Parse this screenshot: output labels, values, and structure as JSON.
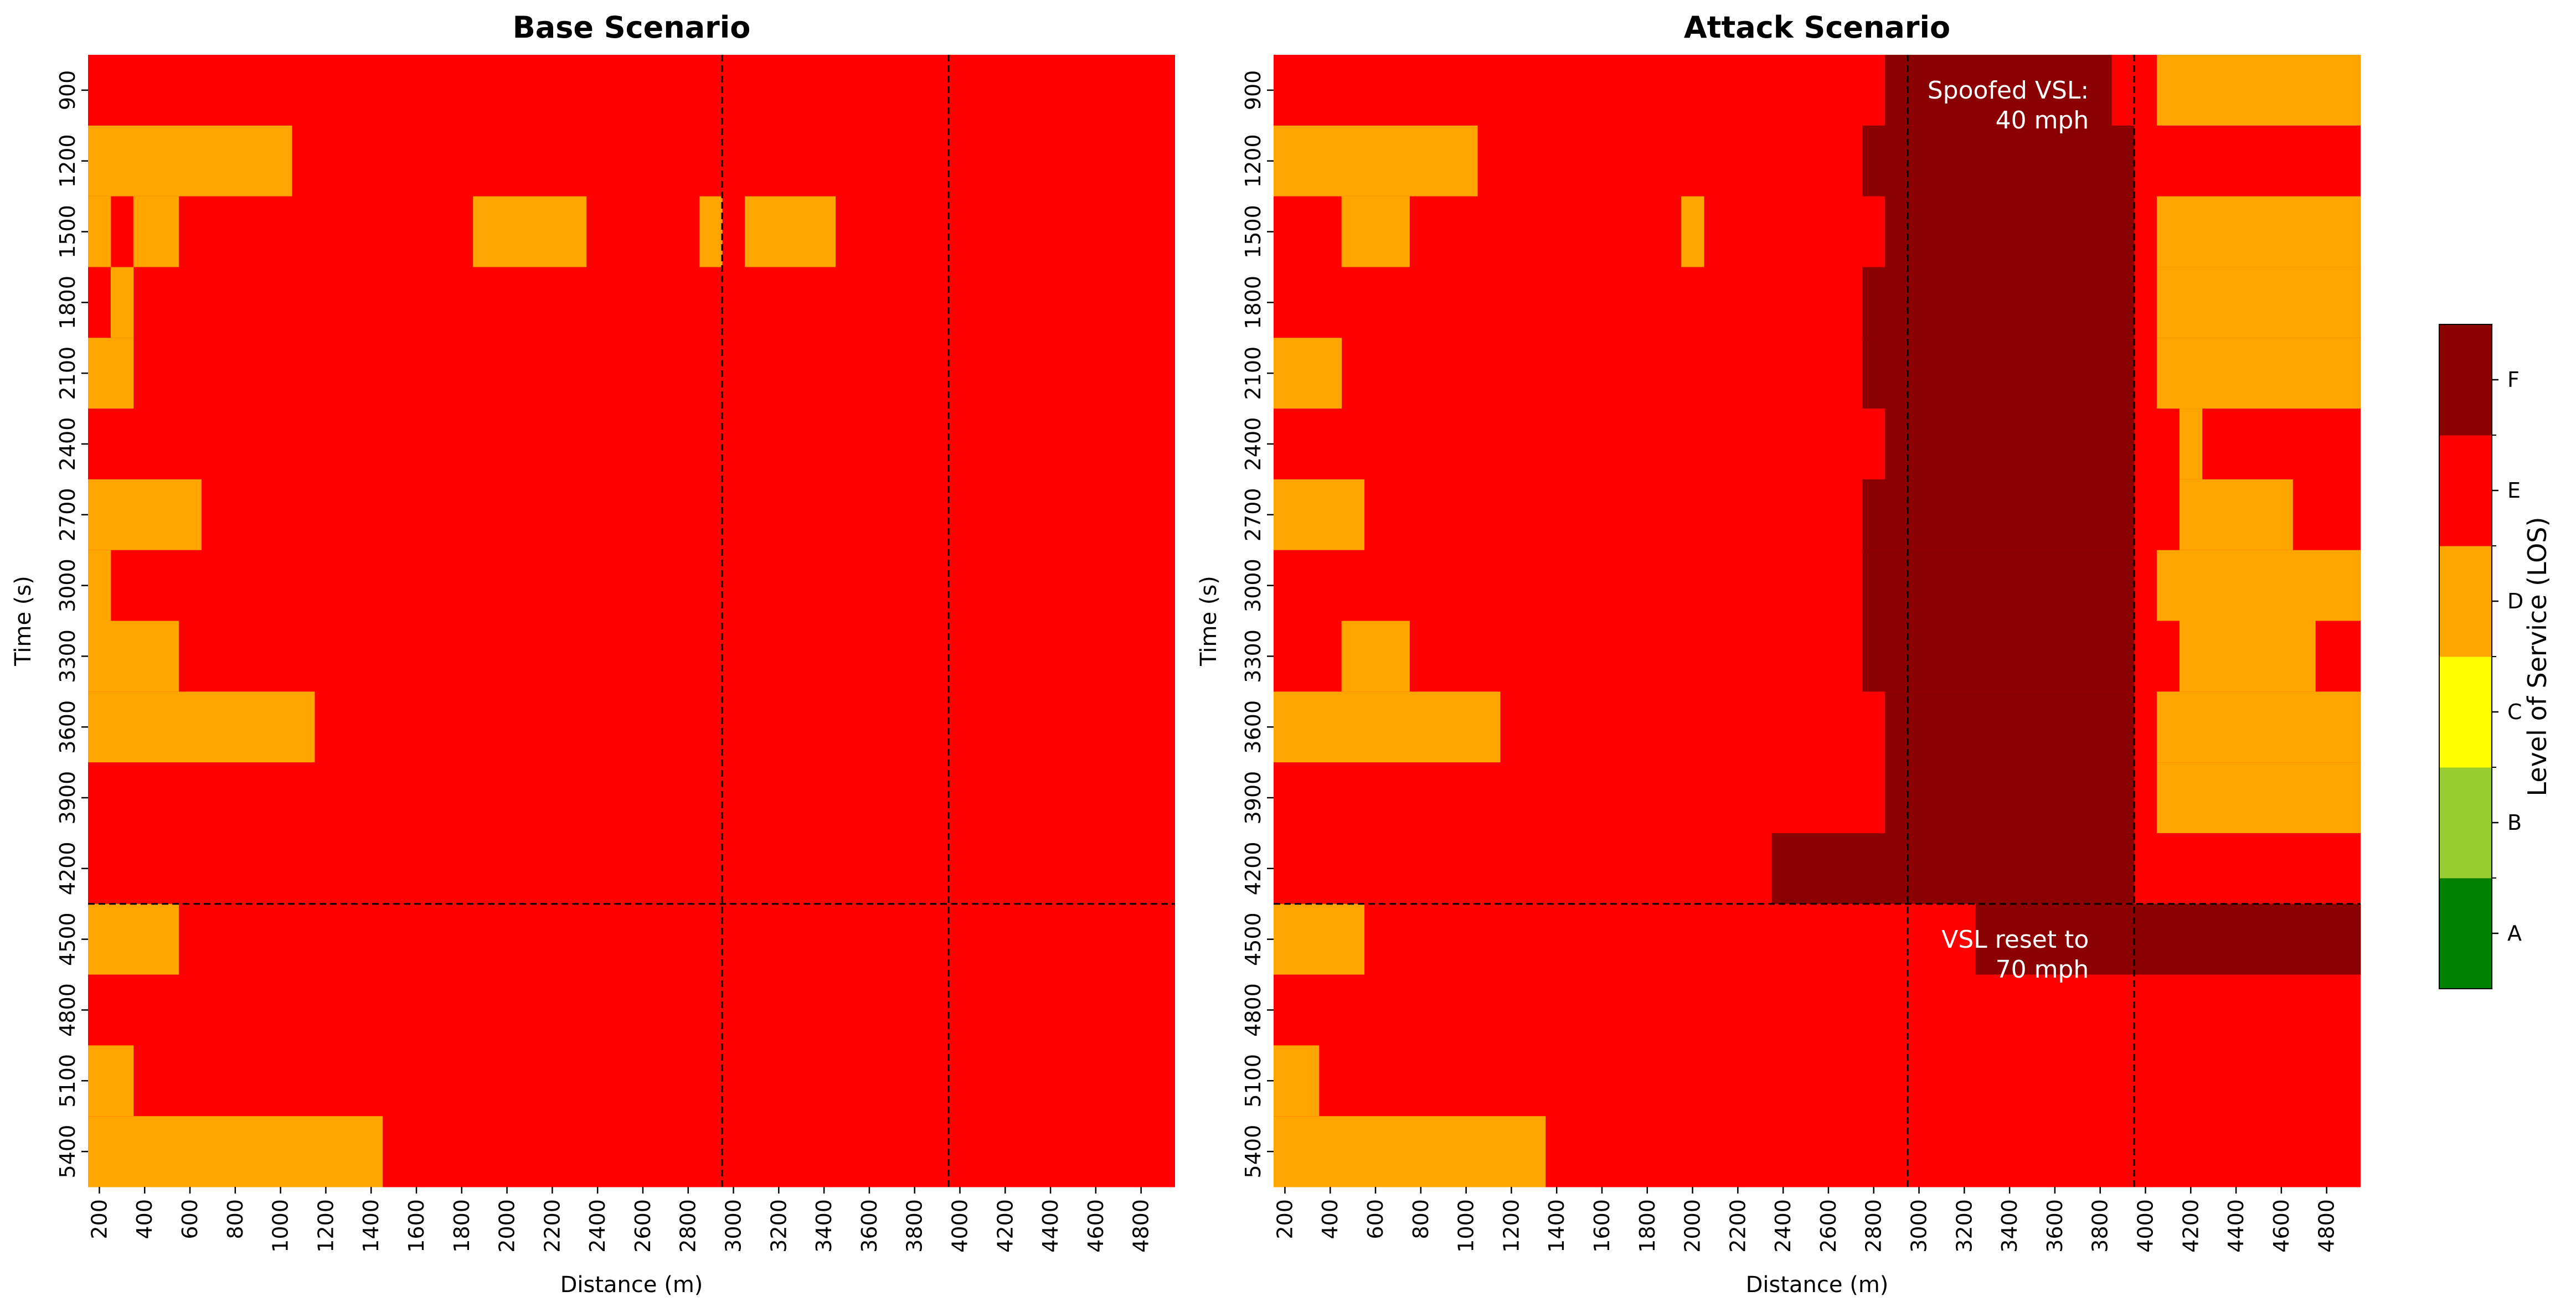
{
  "chart_data": {
    "type": "heatmap",
    "panels": [
      {
        "title": "Base Scenario",
        "xlabel": "Distance (m)",
        "ylabel": "Time (s)",
        "x_start": 200,
        "x_step": 100,
        "x_count": 48,
        "y_ticks": [
          "900",
          "1200",
          "1500",
          "1800",
          "2100",
          "2400",
          "2700",
          "3000",
          "3300",
          "3600",
          "3900",
          "4200",
          "4500",
          "4800",
          "5100",
          "5400"
        ],
        "x_ticks": [
          "200",
          "400",
          "600",
          "800",
          "1000",
          "1200",
          "1400",
          "1600",
          "1800",
          "2000",
          "2200",
          "2400",
          "2600",
          "2800",
          "3000",
          "3200",
          "3400",
          "3600",
          "3800",
          "4000",
          "4200",
          "4400",
          "4600",
          "4800"
        ],
        "default_level": "E",
        "rows": [
          [],
          [
            {
              "from": 200,
              "to": 1100,
              "level": "D"
            }
          ],
          [
            {
              "from": 200,
              "to": 300,
              "level": "D"
            },
            {
              "from": 400,
              "to": 600,
              "level": "D"
            },
            {
              "from": 1900,
              "to": 2400,
              "level": "D"
            },
            {
              "from": 2900,
              "to": 3000,
              "level": "D"
            },
            {
              "from": 3100,
              "to": 3500,
              "level": "D"
            }
          ],
          [
            {
              "from": 300,
              "to": 400,
              "level": "D"
            }
          ],
          [
            {
              "from": 200,
              "to": 400,
              "level": "D"
            }
          ],
          [],
          [
            {
              "from": 200,
              "to": 700,
              "level": "D"
            }
          ],
          [
            {
              "from": 200,
              "to": 300,
              "level": "D"
            }
          ],
          [
            {
              "from": 200,
              "to": 600,
              "level": "D"
            }
          ],
          [
            {
              "from": 200,
              "to": 1200,
              "level": "D"
            }
          ],
          [],
          [],
          [
            {
              "from": 200,
              "to": 600,
              "level": "D"
            }
          ],
          [],
          [
            {
              "from": 200,
              "to": 400,
              "level": "D"
            }
          ],
          [
            {
              "from": 200,
              "to": 1500,
              "level": "D"
            }
          ]
        ],
        "vlines": [
          3000,
          4000
        ],
        "hline_after_tick": "4200"
      },
      {
        "title": "Attack Scenario",
        "xlabel": "Distance (m)",
        "ylabel": "Time (s)",
        "x_start": 200,
        "x_step": 100,
        "x_count": 48,
        "y_ticks": [
          "900",
          "1200",
          "1500",
          "1800",
          "2100",
          "2400",
          "2700",
          "3000",
          "3300",
          "3600",
          "3900",
          "4200",
          "4500",
          "4800",
          "5100",
          "5400"
        ],
        "x_ticks": [
          "200",
          "400",
          "600",
          "800",
          "1000",
          "1200",
          "1400",
          "1600",
          "1800",
          "2000",
          "2200",
          "2400",
          "2600",
          "2800",
          "3000",
          "3200",
          "3400",
          "3600",
          "3800",
          "4000",
          "4200",
          "4400",
          "4600",
          "4800"
        ],
        "default_level": "E",
        "rows": [
          [
            {
              "from": 2900,
              "to": 3900,
              "level": "F"
            },
            {
              "from": 4100,
              "to": 5000,
              "level": "D"
            }
          ],
          [
            {
              "from": 200,
              "to": 1100,
              "level": "D"
            },
            {
              "from": 2800,
              "to": 4000,
              "level": "F"
            }
          ],
          [
            {
              "from": 500,
              "to": 800,
              "level": "D"
            },
            {
              "from": 2000,
              "to": 2100,
              "level": "D"
            },
            {
              "from": 2900,
              "to": 4000,
              "level": "F"
            },
            {
              "from": 4100,
              "to": 5000,
              "level": "D"
            }
          ],
          [
            {
              "from": 2800,
              "to": 4000,
              "level": "F"
            },
            {
              "from": 4100,
              "to": 5000,
              "level": "D"
            }
          ],
          [
            {
              "from": 200,
              "to": 500,
              "level": "D"
            },
            {
              "from": 2800,
              "to": 4000,
              "level": "F"
            },
            {
              "from": 4100,
              "to": 5000,
              "level": "D"
            }
          ],
          [
            {
              "from": 2900,
              "to": 4000,
              "level": "F"
            },
            {
              "from": 4200,
              "to": 4300,
              "level": "D"
            }
          ],
          [
            {
              "from": 200,
              "to": 600,
              "level": "D"
            },
            {
              "from": 2800,
              "to": 4000,
              "level": "F"
            },
            {
              "from": 4200,
              "to": 4700,
              "level": "D"
            }
          ],
          [
            {
              "from": 2800,
              "to": 4000,
              "level": "F"
            },
            {
              "from": 4100,
              "to": 5000,
              "level": "D"
            }
          ],
          [
            {
              "from": 500,
              "to": 800,
              "level": "D"
            },
            {
              "from": 2800,
              "to": 4000,
              "level": "F"
            },
            {
              "from": 4200,
              "to": 4800,
              "level": "D"
            }
          ],
          [
            {
              "from": 200,
              "to": 1200,
              "level": "D"
            },
            {
              "from": 2900,
              "to": 4000,
              "level": "F"
            },
            {
              "from": 4100,
              "to": 5000,
              "level": "D"
            }
          ],
          [
            {
              "from": 2900,
              "to": 4000,
              "level": "F"
            },
            {
              "from": 4100,
              "to": 5000,
              "level": "D"
            }
          ],
          [
            {
              "from": 2400,
              "to": 4000,
              "level": "F"
            }
          ],
          [
            {
              "from": 200,
              "to": 600,
              "level": "D"
            },
            {
              "from": 3300,
              "to": 5000,
              "level": "F"
            }
          ],
          [],
          [
            {
              "from": 200,
              "to": 400,
              "level": "D"
            }
          ],
          [
            {
              "from": 200,
              "to": 1400,
              "level": "D"
            }
          ]
        ],
        "vlines": [
          3000,
          4000
        ],
        "hline_after_tick": "4200",
        "annotations": [
          {
            "text": [
              "Spoofed VSL:",
              "40 mph"
            ],
            "anchor_x": 3800,
            "anchor_tick": "900"
          },
          {
            "text": [
              "VSL reset to",
              "70 mph"
            ],
            "anchor_x": 3800,
            "anchor_tick": "4500"
          }
        ]
      }
    ],
    "colorbar": {
      "label": "Level of Service (LOS)",
      "levels": [
        "A",
        "B",
        "C",
        "D",
        "E",
        "F"
      ],
      "colors": {
        "A": "#008000",
        "B": "#9acd32",
        "C": "#ffff00",
        "D": "#ffa500",
        "E": "#ff0000",
        "F": "#8b0000"
      }
    }
  }
}
